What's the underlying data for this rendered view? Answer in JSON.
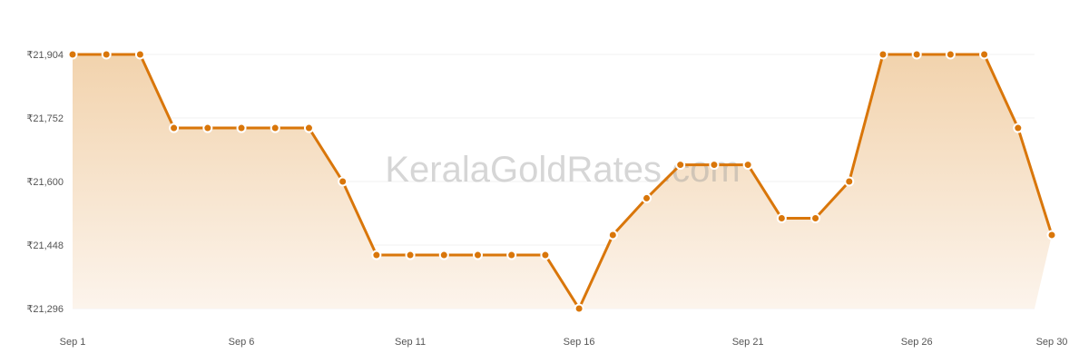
{
  "watermark": "KeralaGoldRates.com",
  "chart_data": {
    "type": "area",
    "title": "",
    "xlabel": "",
    "ylabel": "",
    "x": [
      "Sep 1",
      "Sep 2",
      "Sep 3",
      "Sep 4",
      "Sep 5",
      "Sep 6",
      "Sep 7",
      "Sep 8",
      "Sep 9",
      "Sep 10",
      "Sep 11",
      "Sep 12",
      "Sep 13",
      "Sep 14",
      "Sep 15",
      "Sep 16",
      "Sep 17",
      "Sep 18",
      "Sep 19",
      "Sep 20",
      "Sep 21",
      "Sep 22",
      "Sep 23",
      "Sep 24",
      "Sep 25",
      "Sep 26",
      "Sep 27",
      "Sep 28",
      "Sep 29",
      "Sep 30"
    ],
    "x_tick_labels": [
      "Sep 1",
      "Sep 6",
      "Sep 11",
      "Sep 16",
      "Sep 21",
      "Sep 26",
      "Sep 30"
    ],
    "y_tick_values": [
      21296,
      21448,
      21600,
      21752,
      21904
    ],
    "y_tick_labels": [
      "₹21,296",
      "₹21,448",
      "₹21,600",
      "₹21,752",
      "₹21,904"
    ],
    "ylim": [
      21296,
      21904
    ],
    "grid": true,
    "legend": "none",
    "series": [
      {
        "values": [
          21904,
          21904,
          21904,
          21728,
          21728,
          21728,
          21728,
          21728,
          21600,
          21424,
          21424,
          21424,
          21424,
          21424,
          21424,
          21296,
          21472,
          21560,
          21640,
          21640,
          21640,
          21512,
          21512,
          21600,
          21904,
          21904,
          21904,
          21904,
          21728,
          21472
        ]
      }
    ],
    "colors": {
      "line": "#d9760a",
      "fill_top": "#f2d3ad",
      "fill_bottom": "#fcf4ec",
      "grid": "#f0f0f0"
    }
  }
}
